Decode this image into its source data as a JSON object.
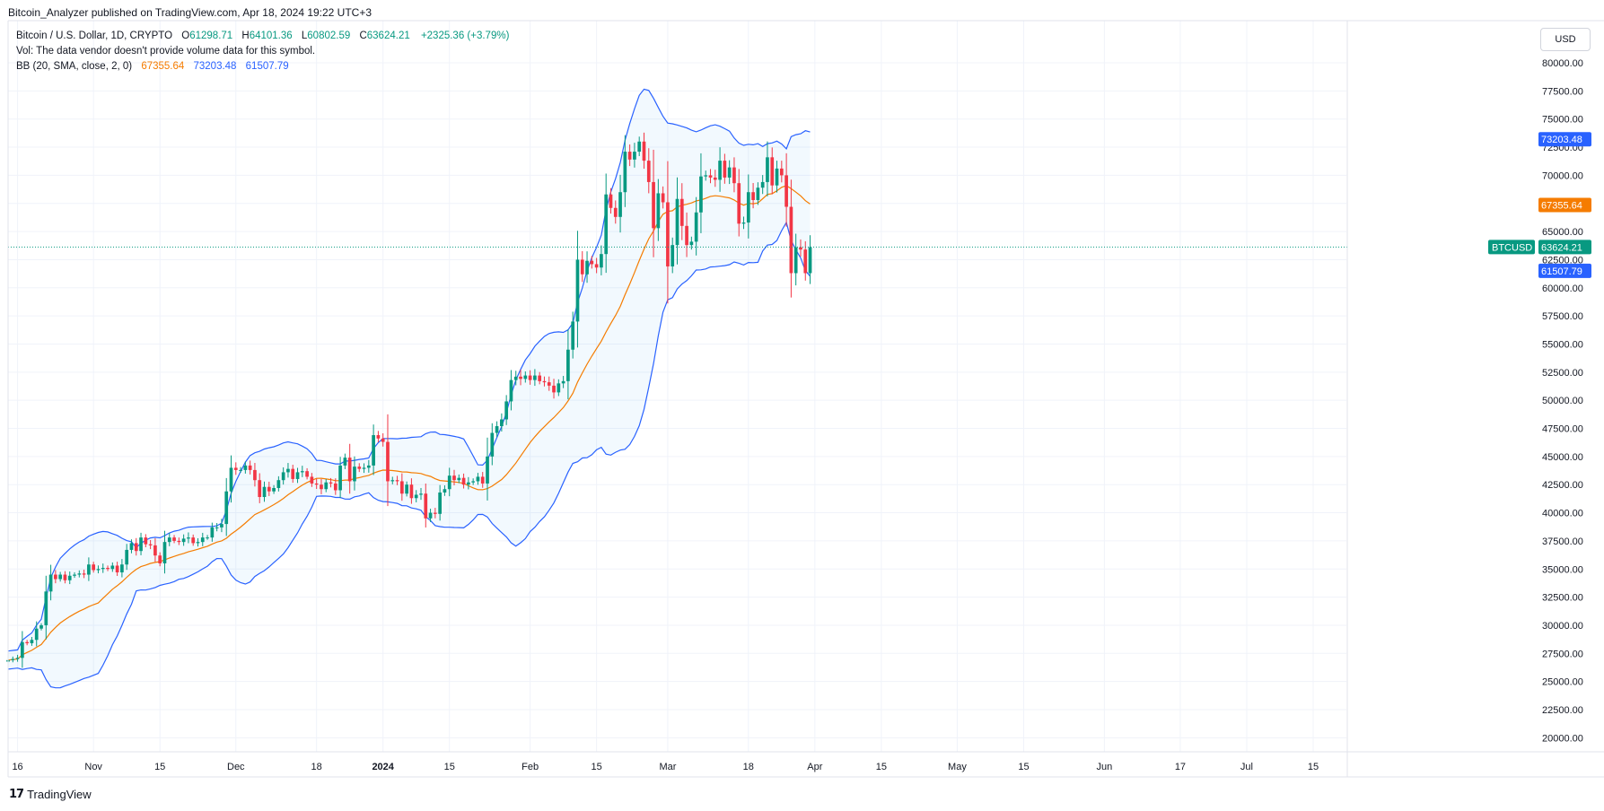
{
  "header": {
    "publisher": "Bitcoin_Analyzer published on TradingView.com, Apr 18, 2024 19:22 UTC+3"
  },
  "legend": {
    "title": "Bitcoin / U.S. Dollar, 1D, CRYPTO",
    "open_label": "O",
    "open": "61298.71",
    "high_label": "H",
    "high": "64101.36",
    "low_label": "L",
    "low": "60802.59",
    "close_label": "C",
    "close": "63624.21",
    "change": "+2325.36 (+3.79%)",
    "vol_line": "Vol: The data vendor doesn't provide volume data for this symbol.",
    "bb_label": "BB (20, SMA, close, 2, 0)",
    "bb_basis": "67355.64",
    "bb_upper": "73203.48",
    "bb_lower": "61507.79"
  },
  "currency": "USD",
  "brand": "TradingView",
  "colors": {
    "up": "#089981",
    "down": "#f23645",
    "basis": "#f57c00",
    "band": "#2962ff",
    "band_fill": "rgba(33,150,243,0.06)",
    "last_price": "#089981"
  },
  "chart_data": {
    "type": "candlestick",
    "title": "Bitcoin / U.S. Dollar, 1D, CRYPTO",
    "symbol": "BTCUSD",
    "ylim": [
      18750,
      83750
    ],
    "yticks": [
      20000,
      22500,
      25000,
      27500,
      30000,
      32500,
      35000,
      37500,
      40000,
      42500,
      45000,
      47500,
      50000,
      52500,
      55000,
      57500,
      60000,
      62500,
      65000,
      67500,
      70000,
      72500,
      75000,
      77500,
      80000
    ],
    "ytick_labels": [
      "20000.00",
      "22500.00",
      "25000.00",
      "27500.00",
      "30000.00",
      "32500.00",
      "35000.00",
      "37500.00",
      "40000.00",
      "42500.00",
      "45000.00",
      "47500.00",
      "50000.00",
      "52500.00",
      "55000.00",
      "57500.00",
      "60000.00",
      "62500.00",
      "65000.00",
      "67500.00",
      "70000.00",
      "72500.00",
      "75000.00",
      "77500.00",
      "80000.00"
    ],
    "xlim": [
      "2023-10-14",
      "2024-07-22"
    ],
    "xticks": [
      {
        "date": "2023-10-16",
        "label": "16",
        "bold": false
      },
      {
        "date": "2023-11-01",
        "label": "Nov",
        "bold": false
      },
      {
        "date": "2023-11-15",
        "label": "15",
        "bold": false
      },
      {
        "date": "2023-12-01",
        "label": "Dec",
        "bold": false
      },
      {
        "date": "2023-12-18",
        "label": "18",
        "bold": false
      },
      {
        "date": "2024-01-01",
        "label": "2024",
        "bold": true
      },
      {
        "date": "2024-01-15",
        "label": "15",
        "bold": false
      },
      {
        "date": "2024-02-01",
        "label": "Feb",
        "bold": false
      },
      {
        "date": "2024-02-15",
        "label": "15",
        "bold": false
      },
      {
        "date": "2024-03-01",
        "label": "Mar",
        "bold": false
      },
      {
        "date": "2024-03-18",
        "label": "18",
        "bold": false
      },
      {
        "date": "2024-04-01",
        "label": "Apr",
        "bold": false
      },
      {
        "date": "2024-04-15",
        "label": "15",
        "bold": false
      },
      {
        "date": "2024-05-01",
        "label": "May",
        "bold": false
      },
      {
        "date": "2024-05-15",
        "label": "15",
        "bold": false
      },
      {
        "date": "2024-06-01",
        "label": "Jun",
        "bold": false
      },
      {
        "date": "2024-06-17",
        "label": "17",
        "bold": false
      },
      {
        "date": "2024-07-01",
        "label": "Jul",
        "bold": false
      },
      {
        "date": "2024-07-15",
        "label": "15",
        "bold": false
      }
    ],
    "start_date": "2023-10-14",
    "closes": [
      26900,
      27000,
      27100,
      28500,
      28400,
      28700,
      29700,
      30000,
      33000,
      34500,
      34100,
      34500,
      34000,
      34400,
      34500,
      34600,
      34500,
      35400,
      34900,
      35000,
      35100,
      35000,
      35300,
      34700,
      35400,
      36700,
      37300,
      36600,
      37800,
      37200,
      37100,
      36200,
      35500,
      37400,
      37800,
      37500,
      37400,
      37700,
      37800,
      37300,
      37400,
      37800,
      37800,
      38700,
      38700,
      39000,
      41900,
      44000,
      43800,
      43800,
      44200,
      43800,
      42900,
      41400,
      42300,
      41900,
      42200,
      42900,
      43600,
      43900,
      43000,
      43600,
      43700,
      43200,
      42600,
      42500,
      42100,
      42700,
      42600,
      42000,
      44200,
      44900,
      42800,
      44100,
      43900,
      44000,
      44200,
      46900,
      46600,
      46300,
      42800,
      42900,
      42800,
      41700,
      42500,
      41300,
      41600,
      41700,
      39500,
      40000,
      39900,
      41800,
      42100,
      43300,
      42900,
      43100,
      42500,
      42700,
      42800,
      43200,
      42600,
      45000,
      47100,
      47700,
      48300,
      49900,
      51800,
      52100,
      51900,
      52200,
      51800,
      52200,
      51700,
      51600,
      51300,
      50700,
      51500,
      51700,
      54500,
      57000,
      62500,
      61200,
      62400,
      62100,
      61800,
      63000,
      68300,
      67100,
      66300,
      68500,
      72100,
      71400,
      72100,
      73000,
      71300,
      69400,
      65300,
      68400,
      67600,
      61900,
      63800,
      67900,
      65500,
      63800,
      64100,
      66700,
      69900,
      70000,
      69800,
      69600,
      71300,
      69800,
      70700,
      69300,
      65700,
      65800,
      68500,
      67800,
      68900,
      69400,
      71600,
      69100,
      70600,
      70000,
      67200,
      61300,
      63600,
      63400,
      61300,
      63600
    ],
    "last_close": 63624.21,
    "last_close_label": "63624.21",
    "bollinger": {
      "period": 20,
      "stdev": 2,
      "basis_last": 67355.64,
      "upper_last": 73203.48,
      "lower_last": 61507.79,
      "basis_label": "67355.64",
      "upper_label": "73203.48",
      "lower_label": "61507.79"
    }
  }
}
